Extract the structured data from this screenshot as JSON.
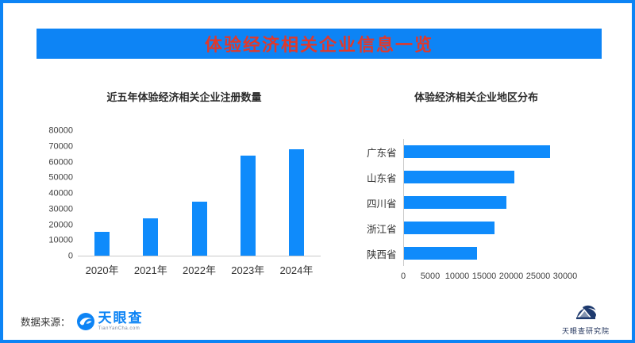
{
  "banner": {
    "title": "体验经济相关企业信息一览"
  },
  "colors": {
    "banner_blue": "#0d84f5",
    "bar_blue": "#0f8bfb",
    "title_red": "#e0392b",
    "axis_gray": "#c9c9c9",
    "navy": "#24365e"
  },
  "chart_data": [
    {
      "type": "bar",
      "title": "近五年体验经济相关企业注册数量",
      "categories": [
        "2020年",
        "2021年",
        "2022年",
        "2023年",
        "2024年"
      ],
      "values": [
        15000,
        24000,
        34500,
        64000,
        68000
      ],
      "ylim": [
        0,
        80000
      ],
      "yticks": [
        0,
        10000,
        20000,
        30000,
        40000,
        50000,
        60000,
        70000,
        80000
      ],
      "xlabel": "",
      "ylabel": "",
      "grid": false,
      "legend": "none"
    },
    {
      "type": "bar",
      "orientation": "horizontal",
      "title": "体验经济相关企业地区分布",
      "categories": [
        "广东省",
        "山东省",
        "四川省",
        "浙江省",
        "陕西省"
      ],
      "values": [
        27000,
        20500,
        19000,
        16800,
        13600
      ],
      "xlim": [
        0,
        30000
      ],
      "xticks": [
        0,
        5000,
        10000,
        15000,
        20000,
        25000,
        30000
      ],
      "xlabel": "",
      "ylabel": "",
      "grid": false,
      "legend": "none"
    }
  ],
  "footer": {
    "source_label": "数据来源：",
    "tyc_logo_text": "天眼查",
    "tyc_logo_subtext": "TianYanCha.com",
    "institute_text": "天眼查研究院"
  }
}
